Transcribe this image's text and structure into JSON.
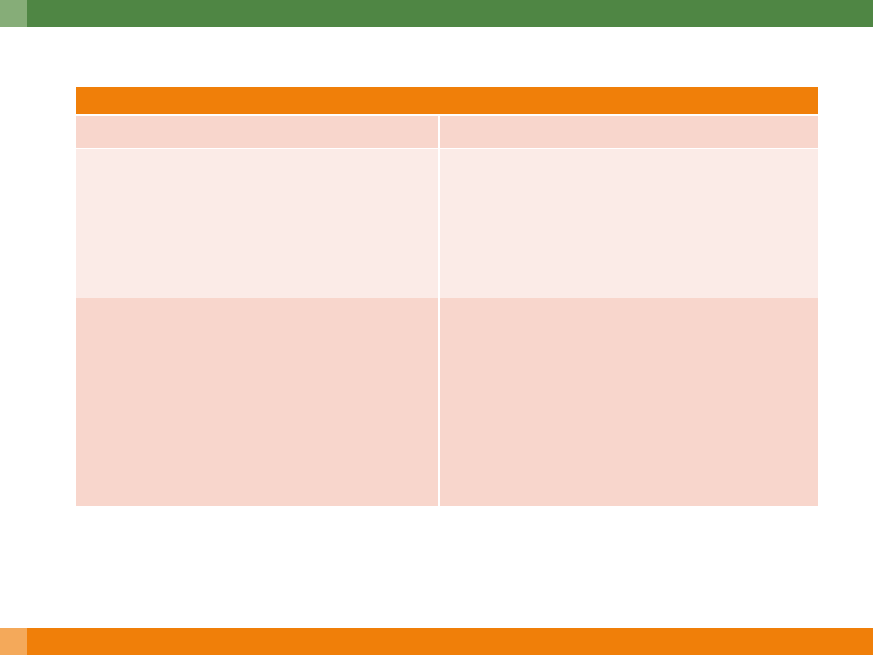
{
  "colors": {
    "top_bar": "#4f8644",
    "top_bar_accent": "#86ad78",
    "bottom_bar": "#f07f09",
    "bottom_bar_accent": "#f4a95a",
    "table_header": "#f07f09",
    "row_dark": "#f8d6cc",
    "row_light": "#fbebe7"
  },
  "table": {
    "header": "",
    "rows": [
      {
        "cells": [
          "",
          ""
        ]
      },
      {
        "cells": [
          "",
          ""
        ]
      },
      {
        "cells": [
          "",
          ""
        ]
      }
    ]
  }
}
